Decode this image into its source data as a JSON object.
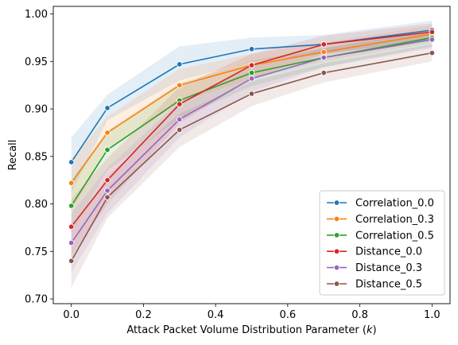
{
  "chart_data": {
    "type": "line",
    "title": "",
    "xlabel": "Attack Packet Volume Distribution Parameter ($k$)",
    "xlabel_parts": [
      "Attack Packet Volume Distribution Parameter (",
      "k",
      ")"
    ],
    "ylabel": "Recall",
    "xlim": [
      -0.05,
      1.05
    ],
    "ylim": [
      0.695,
      1.008
    ],
    "x_ticks": [
      0.0,
      0.2,
      0.4,
      0.6,
      0.8,
      1.0
    ],
    "x_tick_labels": [
      "0.0",
      "0.2",
      "0.4",
      "0.6",
      "0.8",
      "1.0"
    ],
    "y_ticks": [
      0.7,
      0.75,
      0.8,
      0.85,
      0.9,
      0.95,
      1.0
    ],
    "y_tick_labels": [
      "0.70",
      "0.75",
      "0.80",
      "0.85",
      "0.90",
      "0.95",
      "1.00"
    ],
    "grid": false,
    "legend_position": "lower-right",
    "x": [
      0.0,
      0.1,
      0.3,
      0.5,
      0.7,
      1.0
    ],
    "series": [
      {
        "name": "Correlation_0.0",
        "color": "#1f77b4",
        "values": [
          0.844,
          0.901,
          0.947,
          0.963,
          0.968,
          0.983
        ],
        "ci_lower": [
          0.812,
          0.888,
          0.93,
          0.95,
          0.958,
          0.973
        ],
        "ci_upper": [
          0.87,
          0.915,
          0.966,
          0.975,
          0.978,
          0.993
        ]
      },
      {
        "name": "Correlation_0.3",
        "color": "#ff7f0e",
        "values": [
          0.822,
          0.875,
          0.925,
          0.946,
          0.96,
          0.979
        ],
        "ci_lower": [
          0.793,
          0.856,
          0.907,
          0.932,
          0.95,
          0.97
        ],
        "ci_upper": [
          0.847,
          0.892,
          0.942,
          0.958,
          0.97,
          0.988
        ]
      },
      {
        "name": "Correlation_0.5",
        "color": "#2ca02c",
        "values": [
          0.798,
          0.857,
          0.909,
          0.938,
          0.954,
          0.975
        ],
        "ci_lower": [
          0.77,
          0.835,
          0.89,
          0.924,
          0.944,
          0.966
        ],
        "ci_upper": [
          0.825,
          0.877,
          0.927,
          0.951,
          0.964,
          0.984
        ]
      },
      {
        "name": "Distance_0.0",
        "color": "#d62728",
        "values": [
          0.776,
          0.825,
          0.905,
          0.946,
          0.968,
          0.981
        ],
        "ci_lower": [
          0.745,
          0.8,
          0.885,
          0.932,
          0.958,
          0.972
        ],
        "ci_upper": [
          0.805,
          0.848,
          0.923,
          0.958,
          0.977,
          0.99
        ]
      },
      {
        "name": "Distance_0.3",
        "color": "#9467bd",
        "values": [
          0.759,
          0.814,
          0.889,
          0.932,
          0.954,
          0.973
        ],
        "ci_lower": [
          0.728,
          0.79,
          0.87,
          0.918,
          0.944,
          0.964
        ],
        "ci_upper": [
          0.79,
          0.838,
          0.908,
          0.945,
          0.964,
          0.982
        ]
      },
      {
        "name": "Distance_0.5",
        "color": "#8c564b",
        "values": [
          0.74,
          0.807,
          0.878,
          0.916,
          0.938,
          0.959
        ],
        "ci_lower": [
          0.712,
          0.785,
          0.86,
          0.903,
          0.928,
          0.95
        ],
        "ci_upper": [
          0.772,
          0.83,
          0.895,
          0.929,
          0.948,
          0.968
        ]
      }
    ]
  }
}
